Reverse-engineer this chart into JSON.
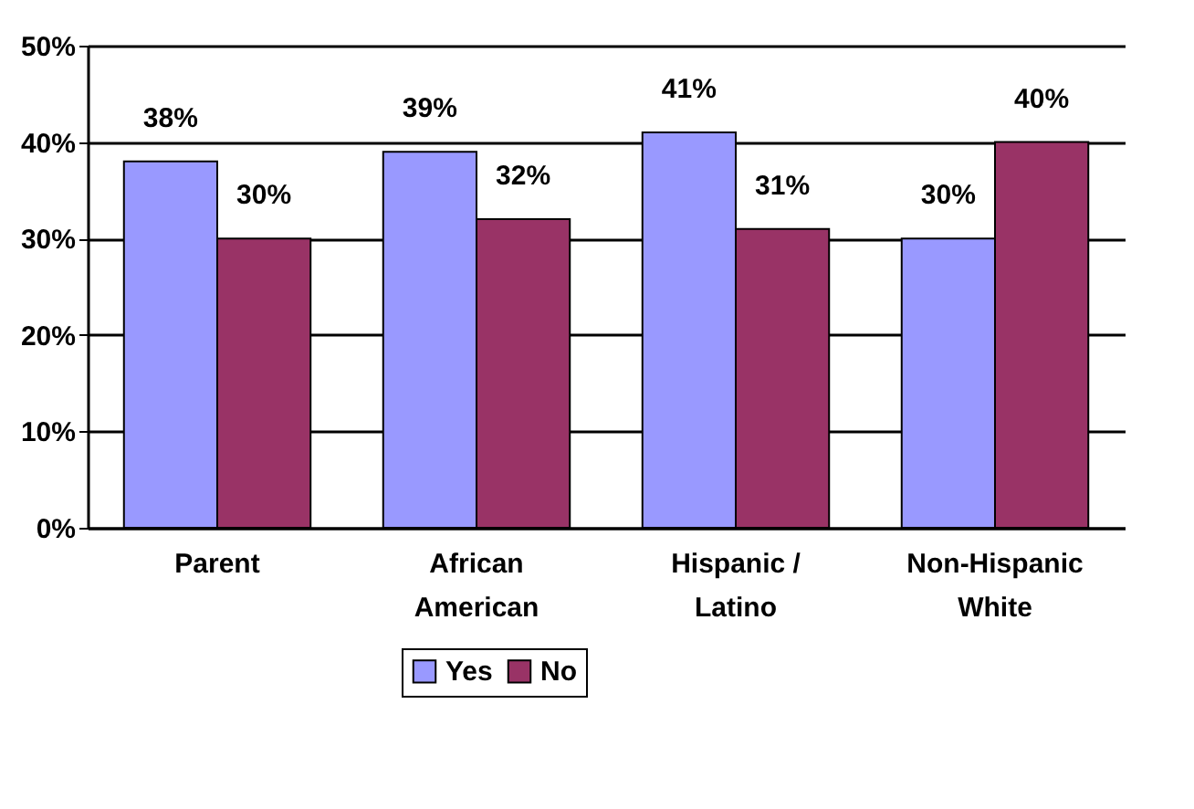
{
  "chart_data": {
    "type": "bar",
    "categories": [
      "Parent",
      "African American",
      "Hispanic / Latino",
      "Non-Hispanic White"
    ],
    "series": [
      {
        "name": "Yes",
        "color": "#9999ff",
        "values": [
          38,
          39,
          41,
          30
        ],
        "value_labels": [
          "38%",
          "39%",
          "41%",
          "30%"
        ]
      },
      {
        "name": "No",
        "color": "#993366",
        "values": [
          30,
          32,
          31,
          40
        ],
        "value_labels": [
          "30%",
          "32%",
          "31%",
          "40%"
        ]
      }
    ],
    "ylim": [
      0,
      50
    ],
    "yticks": [
      {
        "value": 0,
        "label": "0%"
      },
      {
        "value": 10,
        "label": "10%"
      },
      {
        "value": 20,
        "label": "20%"
      },
      {
        "value": 30,
        "label": "30%"
      },
      {
        "value": 40,
        "label": "40%"
      },
      {
        "value": 50,
        "label": "50%"
      }
    ],
    "grid": "y",
    "legend": "bottom"
  }
}
